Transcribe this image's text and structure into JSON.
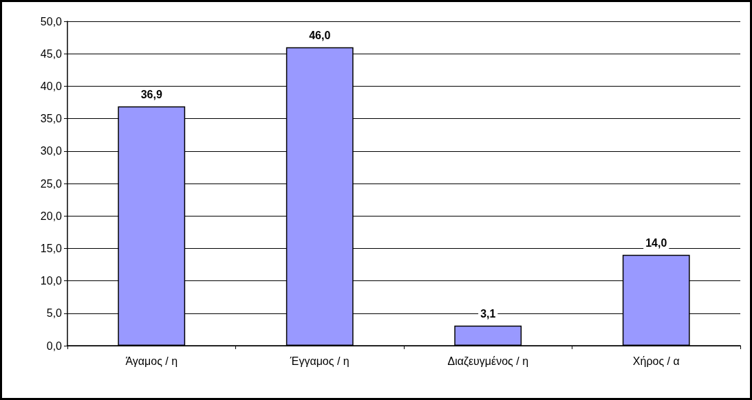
{
  "chart_data": {
    "type": "bar",
    "categories": [
      "Άγαμος / η",
      "Έγγαμος / η",
      "Διαζευγμένος / η",
      "Χήρος / α"
    ],
    "values": [
      36.9,
      46.0,
      3.1,
      14.0
    ],
    "value_labels": [
      "36,9",
      "46,0",
      "3,1",
      "14,0"
    ],
    "color": "#9999ff",
    "ylim": [
      0,
      50
    ],
    "yticks": [
      {
        "value": 0,
        "label": "0,0"
      },
      {
        "value": 5,
        "label": "5,0"
      },
      {
        "value": 10,
        "label": "10,0"
      },
      {
        "value": 15,
        "label": "15,0"
      },
      {
        "value": 20,
        "label": "20,0"
      },
      {
        "value": 25,
        "label": "25,0"
      },
      {
        "value": 30,
        "label": "30,0"
      },
      {
        "value": 35,
        "label": "35,0"
      },
      {
        "value": 40,
        "label": "40,0"
      },
      {
        "value": 45,
        "label": "45,0"
      },
      {
        "value": 50,
        "label": "50,0"
      }
    ],
    "grid": "y"
  }
}
